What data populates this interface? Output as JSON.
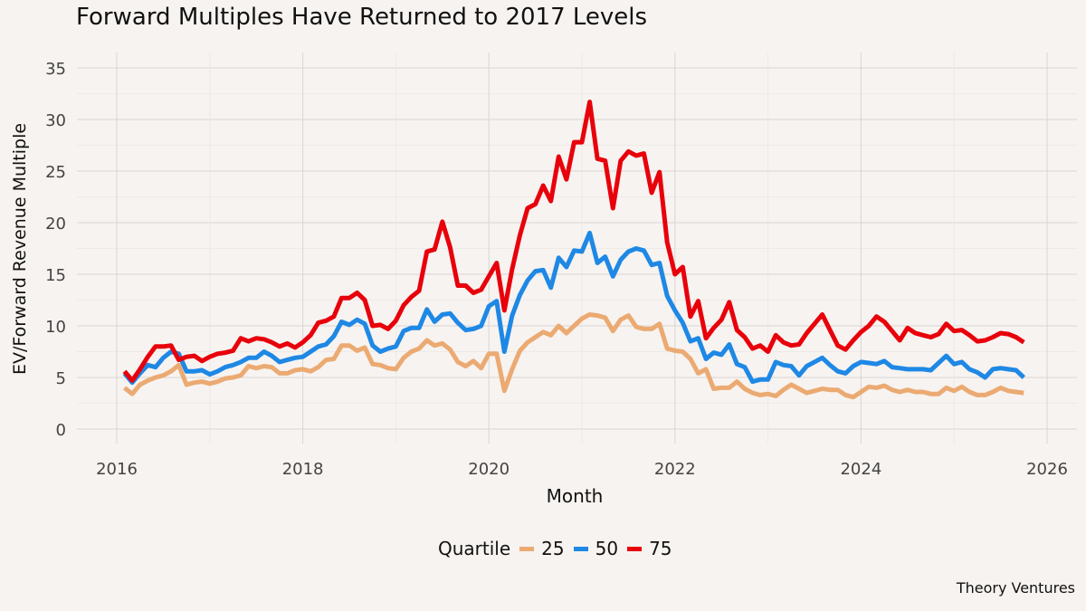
{
  "chart_data": {
    "type": "line",
    "title": "Forward Multiples Have Returned to 2017 Levels",
    "xlabel": "Month",
    "ylabel": "EV/Forward Revenue Multiple",
    "caption": "Theory Ventures",
    "legend_title": "Quartile",
    "legend_position": "bottom",
    "grid": true,
    "xlim": [
      "2015-07",
      "2026-03"
    ],
    "ylim": [
      -1.5,
      36
    ],
    "x_ticks": [
      "2016",
      "2018",
      "2020",
      "2022",
      "2024",
      "2026"
    ],
    "y_ticks": [
      "0",
      "5",
      "10",
      "15",
      "20",
      "25",
      "30",
      "35"
    ],
    "x": [
      "2016-02",
      "2016-03",
      "2016-04",
      "2016-05",
      "2016-06",
      "2016-07",
      "2016-08",
      "2016-09",
      "2016-10",
      "2016-11",
      "2016-12",
      "2017-01",
      "2017-02",
      "2017-03",
      "2017-04",
      "2017-05",
      "2017-06",
      "2017-07",
      "2017-08",
      "2017-09",
      "2017-10",
      "2017-11",
      "2017-12",
      "2018-01",
      "2018-02",
      "2018-03",
      "2018-04",
      "2018-05",
      "2018-06",
      "2018-07",
      "2018-08",
      "2018-09",
      "2018-10",
      "2018-11",
      "2018-12",
      "2019-01",
      "2019-02",
      "2019-03",
      "2019-04",
      "2019-05",
      "2019-06",
      "2019-07",
      "2019-08",
      "2019-09",
      "2019-10",
      "2019-11",
      "2019-12",
      "2020-01",
      "2020-02",
      "2020-03",
      "2020-04",
      "2020-05",
      "2020-06",
      "2020-07",
      "2020-08",
      "2020-09",
      "2020-10",
      "2020-11",
      "2020-12",
      "2021-01",
      "2021-02",
      "2021-03",
      "2021-04",
      "2021-05",
      "2021-06",
      "2021-07",
      "2021-08",
      "2021-09",
      "2021-10",
      "2021-11",
      "2021-12",
      "2022-01",
      "2022-02",
      "2022-03",
      "2022-04",
      "2022-05",
      "2022-06",
      "2022-07",
      "2022-08",
      "2022-09",
      "2022-10",
      "2022-11",
      "2022-12",
      "2023-01",
      "2023-02",
      "2023-03",
      "2023-04",
      "2023-05",
      "2023-06",
      "2023-07",
      "2023-08",
      "2023-09",
      "2023-10",
      "2023-11",
      "2023-12",
      "2024-01",
      "2024-02",
      "2024-03",
      "2024-04",
      "2024-05",
      "2024-06",
      "2024-07",
      "2024-08",
      "2024-09",
      "2024-10",
      "2024-11",
      "2024-12",
      "2025-01",
      "2025-02",
      "2025-03",
      "2025-04",
      "2025-05",
      "2025-06",
      "2025-07",
      "2025-08",
      "2025-09",
      "2025-10"
    ],
    "series": [
      {
        "name": "25",
        "color": "#EBAA72",
        "values": [
          4.0,
          3.4,
          4.3,
          4.7,
          5.0,
          5.2,
          5.6,
          6.2,
          4.3,
          4.5,
          4.6,
          4.4,
          4.6,
          4.9,
          5.0,
          5.2,
          6.1,
          5.9,
          6.1,
          6.0,
          5.4,
          5.4,
          5.7,
          5.8,
          5.6,
          6.0,
          6.7,
          6.8,
          8.1,
          8.1,
          7.6,
          7.9,
          6.3,
          6.2,
          5.9,
          5.8,
          6.9,
          7.5,
          7.8,
          8.6,
          8.1,
          8.3,
          7.7,
          6.5,
          6.1,
          6.6,
          5.9,
          7.3,
          7.3,
          3.7,
          5.8,
          7.6,
          8.4,
          8.9,
          9.4,
          9.1,
          10.0,
          9.3,
          10.0,
          10.7,
          11.1,
          11.0,
          10.8,
          9.5,
          10.6,
          11.0,
          9.9,
          9.7,
          9.7,
          10.2,
          7.8,
          7.6,
          7.5,
          6.8,
          5.4,
          5.8,
          3.9,
          4.0,
          4.0,
          4.6,
          3.9,
          3.5,
          3.3,
          3.4,
          3.2,
          3.8,
          4.3,
          3.9,
          3.5,
          3.7,
          3.9,
          3.8,
          3.8,
          3.3,
          3.1,
          3.6,
          4.1,
          4.0,
          4.2,
          3.8,
          3.6,
          3.8,
          3.6,
          3.6,
          3.4,
          3.4,
          4.0,
          3.7,
          4.1,
          3.6,
          3.3,
          3.3,
          3.6,
          4.0,
          3.7,
          3.6,
          3.5
        ]
      },
      {
        "name": "50",
        "color": "#1E88E5",
        "values": [
          5.4,
          4.5,
          5.4,
          6.2,
          6.0,
          6.9,
          7.5,
          7.3,
          5.6,
          5.6,
          5.7,
          5.3,
          5.6,
          6.0,
          6.2,
          6.5,
          6.9,
          6.9,
          7.5,
          7.1,
          6.5,
          6.7,
          6.9,
          7.0,
          7.5,
          8.0,
          8.2,
          9.0,
          10.4,
          10.1,
          10.6,
          10.2,
          8.1,
          7.5,
          7.8,
          8.0,
          9.5,
          9.8,
          9.8,
          11.6,
          10.4,
          11.1,
          11.2,
          10.3,
          9.6,
          9.7,
          10.0,
          11.9,
          12.4,
          7.5,
          11.0,
          13.0,
          14.4,
          15.3,
          15.4,
          13.7,
          16.6,
          15.7,
          17.3,
          17.2,
          19.0,
          16.1,
          16.7,
          14.8,
          16.4,
          17.2,
          17.5,
          17.3,
          15.9,
          16.1,
          12.9,
          11.5,
          10.3,
          8.5,
          8.8,
          6.8,
          7.4,
          7.2,
          8.2,
          6.3,
          6.0,
          4.6,
          4.8,
          4.8,
          6.5,
          6.2,
          6.1,
          5.2,
          6.1,
          6.5,
          6.9,
          6.2,
          5.6,
          5.4,
          6.1,
          6.5,
          6.4,
          6.3,
          6.6,
          6.0,
          5.9,
          5.8,
          5.8,
          5.8,
          5.7,
          6.4,
          7.1,
          6.3,
          6.5,
          5.8,
          5.5,
          5.0,
          5.8,
          5.9,
          5.8,
          5.7,
          5.0
        ]
      },
      {
        "name": "75",
        "color": "#E8000B",
        "values": [
          5.6,
          4.7,
          5.8,
          7.0,
          8.0,
          8.0,
          8.1,
          6.7,
          7.0,
          7.1,
          6.6,
          7.0,
          7.3,
          7.4,
          7.6,
          8.8,
          8.5,
          8.8,
          8.7,
          8.4,
          8.0,
          8.3,
          7.9,
          8.4,
          9.1,
          10.3,
          10.5,
          10.9,
          12.7,
          12.7,
          13.2,
          12.5,
          10.0,
          10.1,
          9.7,
          10.5,
          12.0,
          12.8,
          13.4,
          17.2,
          17.4,
          20.1,
          17.6,
          13.9,
          13.9,
          13.2,
          13.5,
          14.8,
          16.1,
          11.5,
          15.5,
          18.8,
          21.4,
          21.8,
          23.6,
          22.1,
          26.4,
          24.2,
          27.8,
          27.8,
          31.7,
          26.2,
          26.0,
          21.4,
          26.0,
          26.9,
          26.5,
          26.7,
          22.9,
          24.9,
          18.1,
          15.0,
          15.7,
          10.9,
          12.4,
          8.8,
          9.8,
          10.6,
          12.3,
          9.6,
          8.9,
          7.8,
          8.1,
          7.5,
          9.1,
          8.4,
          8.1,
          8.2,
          9.3,
          10.2,
          11.1,
          9.6,
          8.1,
          7.7,
          8.6,
          9.4,
          10.0,
          10.9,
          10.4,
          9.5,
          8.6,
          9.8,
          9.3,
          9.1,
          8.9,
          9.2,
          10.2,
          9.5,
          9.6,
          9.1,
          8.5,
          8.6,
          8.9,
          9.3,
          9.2,
          8.9,
          8.4
        ]
      }
    ]
  }
}
